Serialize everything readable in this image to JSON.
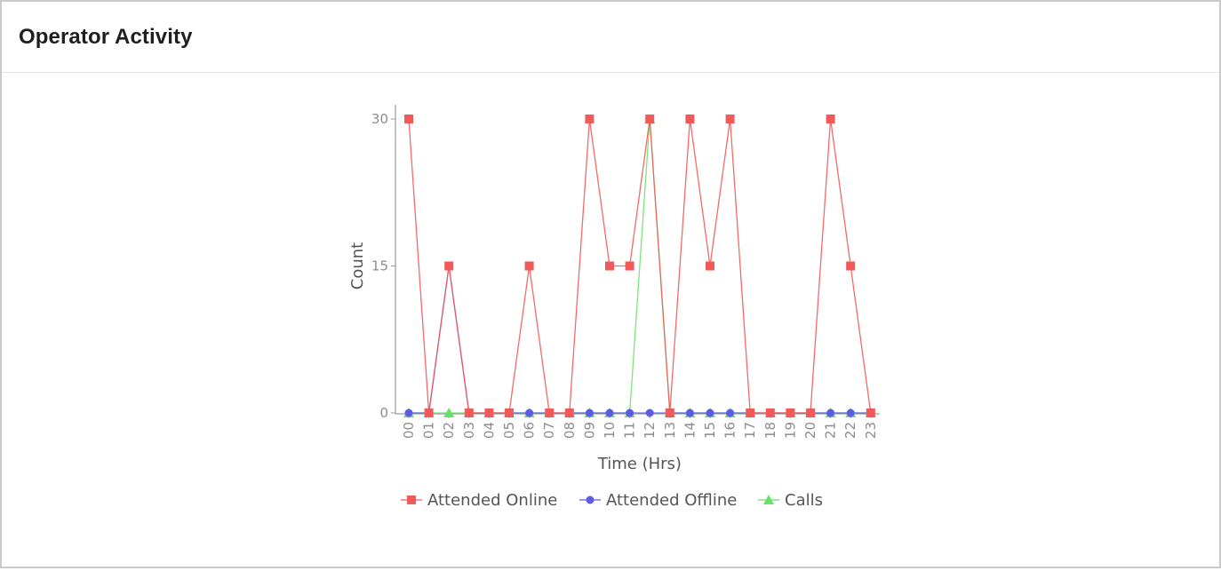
{
  "header": {
    "title": "Operator Activity"
  },
  "chart_data": {
    "type": "line",
    "xlabel": "Time (Hrs)",
    "ylabel": "Count",
    "x": [
      "00",
      "01",
      "02",
      "03",
      "04",
      "05",
      "06",
      "07",
      "08",
      "09",
      "10",
      "11",
      "12",
      "13",
      "14",
      "15",
      "16",
      "17",
      "18",
      "19",
      "20",
      "21",
      "22",
      "23"
    ],
    "yticks": [
      "0",
      "15",
      "30"
    ],
    "ylim": [
      0,
      30
    ],
    "grid": false,
    "legend_position": "bottom",
    "series": [
      {
        "name": "Attended Online",
        "color": "#f25a5a",
        "marker": "square",
        "values": [
          30,
          0,
          15,
          0,
          0,
          0,
          15,
          0,
          0,
          30,
          15,
          15,
          30,
          0,
          30,
          15,
          30,
          0,
          0,
          0,
          0,
          30,
          15,
          0
        ]
      },
      {
        "name": "Attended Offline",
        "color": "#5b5be6",
        "marker": "circle",
        "values": [
          0,
          0,
          15,
          0,
          0,
          0,
          0,
          0,
          0,
          0,
          0,
          0,
          0,
          0,
          0,
          0,
          0,
          0,
          0,
          0,
          0,
          0,
          0,
          0
        ]
      },
      {
        "name": "Calls",
        "color": "#66e066",
        "marker": "triangle",
        "values": [
          0,
          0,
          0,
          0,
          0,
          0,
          0,
          0,
          0,
          0,
          0,
          0,
          30,
          0,
          0,
          0,
          0,
          0,
          0,
          0,
          0,
          0,
          0,
          0
        ]
      }
    ]
  }
}
